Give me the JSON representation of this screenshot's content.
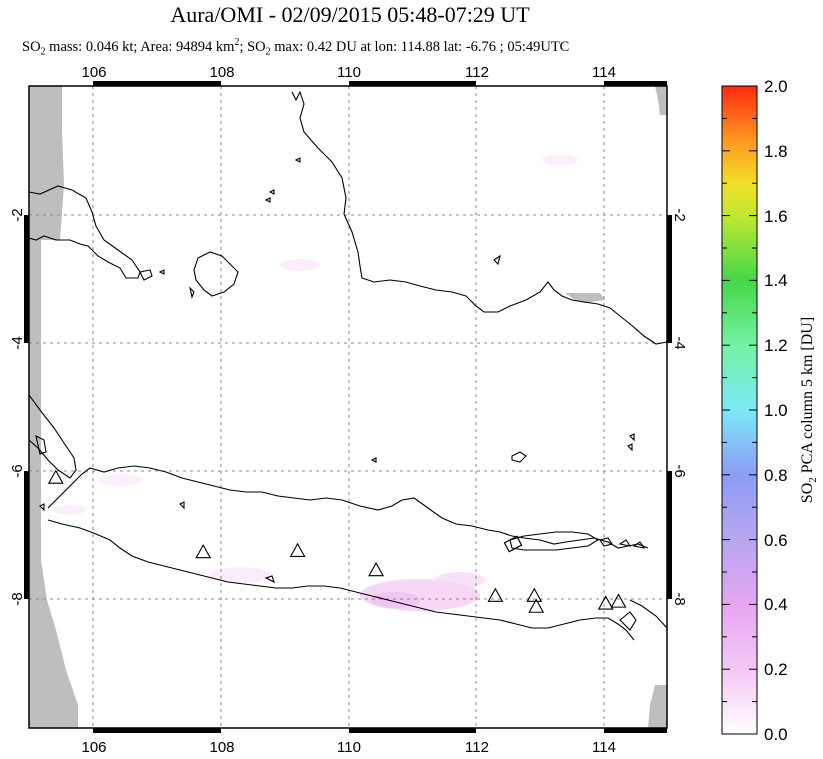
{
  "title": "Aura/OMI - 02/09/2015 05:48-07:29 UT",
  "subtitle": {
    "p1": "SO",
    "p1_sub": "2",
    "p2": " mass: 0.046 kt; Area: 94894 km",
    "p2_sup": "2",
    "p3": "; SO",
    "p3_sub": "2",
    "p4": " max: 0.42 DU at lon: 114.88 lat: -6.76 ; 05:49UTC"
  },
  "map": {
    "lon_range": [
      105,
      115
    ],
    "lat_range": [
      -10,
      0
    ],
    "lon_ticks": [
      "106",
      "108",
      "110",
      "112",
      "114"
    ],
    "lat_ticks": [
      "-2",
      "-4",
      "-6",
      "-8"
    ],
    "grid": true
  },
  "colorbar": {
    "label": "SO2 PCA column 5 km [DU]",
    "label_parts": {
      "a": "SO",
      "sub": "2",
      "b": " PCA column 5 km [DU]"
    },
    "ticks": [
      "0.0",
      "0.2",
      "0.4",
      "0.6",
      "0.8",
      "1.0",
      "1.2",
      "1.4",
      "1.6",
      "1.8",
      "2.0"
    ],
    "range": [
      0,
      2
    ],
    "colors": [
      "#ffffff",
      "#f4c7f4",
      "#b7a6f0",
      "#7ea6f5",
      "#7ce9f7",
      "#74f2a2",
      "#46d64a",
      "#c0e832",
      "#f3df29",
      "#ff9320",
      "#ff2a12"
    ]
  },
  "volcanoes": [
    {
      "lon": 105.42,
      "lat": -6.1
    },
    {
      "lon": 107.73,
      "lat": -7.26
    },
    {
      "lon": 109.21,
      "lat": -7.24
    },
    {
      "lon": 110.44,
      "lat": -7.54
    },
    {
      "lon": 112.31,
      "lat": -7.94
    },
    {
      "lon": 112.92,
      "lat": -7.94
    },
    {
      "lon": 112.95,
      "lat": -8.11
    },
    {
      "lon": 114.04,
      "lat": -8.06
    },
    {
      "lon": 114.24,
      "lat": -8.03
    }
  ],
  "colors": {
    "missing": "#bebebe",
    "coast": "#000000",
    "grid": "#888888"
  }
}
